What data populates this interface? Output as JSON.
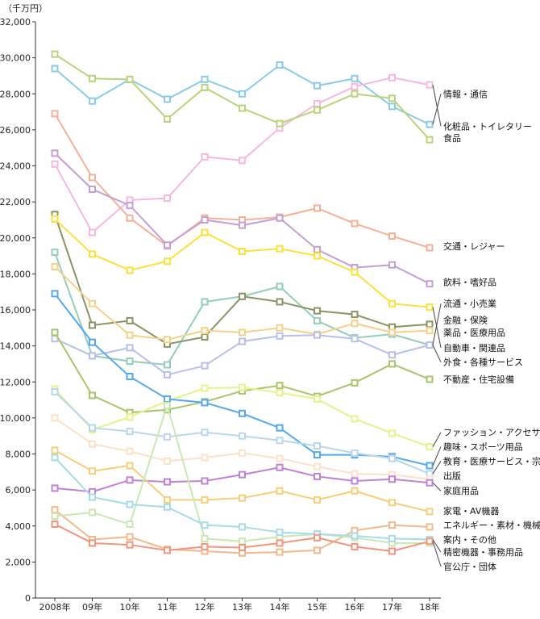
{
  "chart_data": {
    "type": "line",
    "unit_label": "（千万円）",
    "categories": [
      "2008年",
      "09年",
      "10年",
      "11年",
      "12年",
      "13年",
      "14年",
      "15年",
      "16年",
      "17年",
      "18年"
    ],
    "ylim": [
      0,
      32000
    ],
    "yticks": [
      "0",
      "2,000",
      "4,000",
      "6,000",
      "8,000",
      "10,000",
      "12,000",
      "14,000",
      "16,000",
      "18,000",
      "20,000",
      "22,000",
      "24,000",
      "26,000",
      "28,000",
      "30,000",
      "32,000"
    ],
    "grid": false,
    "legend_placement": "right",
    "series": [
      {
        "name": "情報・通信",
        "color": "#8ccbe6",
        "values": [
          29400,
          27600,
          28800,
          27700,
          28800,
          28000,
          29600,
          28450,
          28850,
          27300,
          26300
        ]
      },
      {
        "name": "化粧品・トイレタリー",
        "color": "#f7b8e0",
        "values": [
          24100,
          20300,
          22100,
          22200,
          24500,
          24300,
          26100,
          27450,
          28400,
          28900,
          28500
        ]
      },
      {
        "name": "食品",
        "color": "#b8d47a",
        "values": [
          30200,
          28850,
          28800,
          26600,
          28350,
          27200,
          26350,
          27100,
          28000,
          27750,
          25450
        ]
      },
      {
        "name": "交通・レジャー",
        "color": "#f5b09a",
        "values": [
          26900,
          23350,
          21100,
          19550,
          21100,
          21000,
          21150,
          21650,
          20800,
          20100,
          19450
        ]
      },
      {
        "name": "飲料・嗜好品",
        "color": "#c39fd2",
        "values": [
          24700,
          22700,
          21800,
          19600,
          21000,
          20700,
          21100,
          19350,
          18350,
          18500,
          17450
        ]
      },
      {
        "name": "流通・小売業",
        "color": "#94cdb8",
        "values": [
          19200,
          13450,
          13150,
          12950,
          16450,
          16750,
          17300,
          15400,
          14450,
          14650,
          14050
        ]
      },
      {
        "name": "金融・保険",
        "color": "#8a9465",
        "values": [
          21300,
          15150,
          15400,
          14100,
          14500,
          16750,
          16450,
          15950,
          15750,
          15050,
          15200
        ]
      },
      {
        "name": "薬品・医療用品",
        "color": "#f5d289",
        "values": [
          18400,
          16350,
          14600,
          14350,
          14850,
          14750,
          15000,
          14650,
          15250,
          14750,
          14850
        ]
      },
      {
        "name": "自動車・関連品",
        "color": "#fbe13a",
        "values": [
          21050,
          19100,
          18200,
          18700,
          20300,
          19250,
          19400,
          19000,
          18100,
          16350,
          16150
        ]
      },
      {
        "name": "外食・各種サービス",
        "color": "#b8bfe8",
        "values": [
          14400,
          13450,
          13900,
          12400,
          12900,
          14250,
          14550,
          14600,
          14400,
          13500,
          14050
        ]
      },
      {
        "name": "不動産・住宅設備",
        "color": "#a9c46a",
        "values": [
          14750,
          11250,
          10300,
          10450,
          10900,
          11500,
          11800,
          11200,
          11950,
          13000,
          12150
        ]
      },
      {
        "name": "ファッション・アクセサリー",
        "color": "#e1f58a",
        "values": [
          11600,
          9350,
          10050,
          10950,
          11650,
          11700,
          11400,
          11050,
          9950,
          9150,
          8400
        ]
      },
      {
        "name": "趣味・スポーツ用品",
        "color": "#56a8ea",
        "values": [
          16900,
          14200,
          12300,
          11050,
          10850,
          10250,
          9450,
          7950,
          7950,
          7850,
          7350
        ]
      },
      {
        "name": "教育・医療サービス・宗教",
        "color": "#b7d7ea",
        "values": [
          11450,
          9450,
          9250,
          8950,
          9200,
          9000,
          8750,
          8450,
          8050,
          7750,
          6900
        ]
      },
      {
        "name": "出版",
        "color": "#fbe2c8",
        "values": [
          10000,
          8550,
          8150,
          7600,
          7800,
          8050,
          7750,
          7300,
          6900,
          6850,
          6600
        ]
      },
      {
        "name": "家庭用品",
        "color": "#c082d4",
        "values": [
          6100,
          5900,
          6550,
          6450,
          6500,
          6850,
          7250,
          6750,
          6500,
          6600,
          6400
        ]
      },
      {
        "name": "家電・AV機器",
        "color": "#f6cf7a",
        "values": [
          8200,
          7050,
          7350,
          5450,
          5450,
          5550,
          5950,
          5450,
          5950,
          5300,
          4800
        ]
      },
      {
        "name": "エネルギー・素材・機械",
        "color": "#f3b98a",
        "values": [
          4900,
          3250,
          3400,
          2700,
          2600,
          2500,
          2550,
          2650,
          3750,
          4050,
          3950
        ]
      },
      {
        "name": "案内・その他",
        "color": "#c9e8b4",
        "values": [
          4550,
          4750,
          4100,
          10700,
          3300,
          3150,
          3400,
          3550,
          3350,
          3050,
          3050
        ]
      },
      {
        "name": "精密機器・事務用品",
        "color": "#a8dbe6",
        "values": [
          7800,
          5600,
          5200,
          5050,
          4050,
          3950,
          3650,
          3550,
          3450,
          3300,
          3250
        ]
      },
      {
        "name": "官公庁・団体",
        "color": "#f2957e",
        "values": [
          4100,
          3050,
          2950,
          2650,
          2850,
          2800,
          3050,
          3350,
          2850,
          2600,
          3150
        ]
      }
    ],
    "legend_entries": [
      {
        "name": "情報・通信",
        "label_value": 28000
      },
      {
        "name": "化粧品・トイレタリー",
        "label_value": 26200
      },
      {
        "name": "食品",
        "label_value": 25550
      },
      {
        "name": "交通・レジャー",
        "label_value": 19550
      },
      {
        "name": "飲料・嗜好品",
        "label_value": 17550
      },
      {
        "name": "流通・小売業",
        "label_value": 16350
      },
      {
        "name": "金融・保険",
        "label_value": 15450
      },
      {
        "name": "薬品・医療用品",
        "label_value": 14750
      },
      {
        "name": "自動車・関連品",
        "label_value": 13900
      },
      {
        "name": "外食・各種サービス",
        "label_value": 13100
      },
      {
        "name": "不動産・住宅設備",
        "label_value": 12150
      },
      {
        "name": "ファッション・アクセサリー",
        "label_value": 9200
      },
      {
        "name": "趣味・スポーツ用品",
        "label_value": 8400
      },
      {
        "name": "教育・医療サービス・宗教",
        "label_value": 7600
      },
      {
        "name": "出版",
        "label_value": 6800
      },
      {
        "name": "家庭用品",
        "label_value": 5950
      },
      {
        "name": "家電・AV機器",
        "label_value": 4850
      },
      {
        "name": "エネルギー・素材・機械",
        "label_value": 4050
      },
      {
        "name": "案内・その他",
        "label_value": 3250
      },
      {
        "name": "精密機器・事務用品",
        "label_value": 2550
      },
      {
        "name": "官公庁・団体",
        "label_value": 1750
      }
    ]
  }
}
